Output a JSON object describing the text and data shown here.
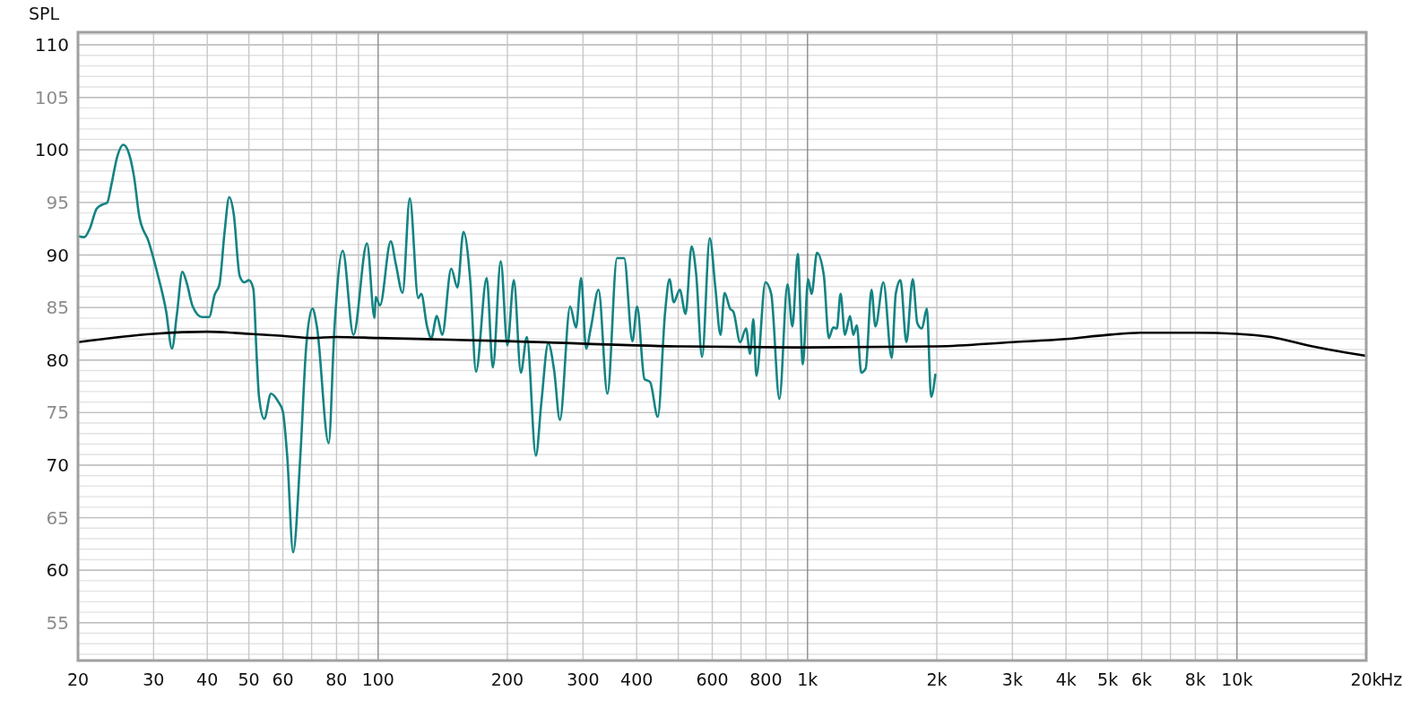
{
  "chart_data": {
    "type": "line",
    "ylabel": "SPL",
    "xlabel": "Hz",
    "log": "x",
    "grid": true,
    "marker": "none",
    "line_style": "solid",
    "xlim": [
      20,
      20000
    ],
    "ylim": [
      51.4,
      111.2
    ],
    "xticks": [
      20,
      30,
      40,
      50,
      60,
      80,
      100,
      200,
      300,
      400,
      600,
      800,
      {
        "value": 1000,
        "label": "1k"
      },
      {
        "value": 2000,
        "label": "2k"
      },
      {
        "value": 3000,
        "label": "3k"
      },
      {
        "value": 4000,
        "label": "4k"
      },
      {
        "value": 5000,
        "label": "5k"
      },
      {
        "value": 6000,
        "label": "6k"
      },
      {
        "value": 8000,
        "label": "8k"
      },
      {
        "value": 10000,
        "label": "10k"
      },
      {
        "value": 20000,
        "label": "20k"
      }
    ],
    "yticks": [
      55,
      60,
      65,
      70,
      75,
      80,
      85,
      90,
      95,
      100,
      105,
      110
    ],
    "series": [
      {
        "color": "#138383",
        "x": [
          20,
          20.7,
          21.3,
          22.1,
          22.8,
          23.4,
          23.9,
          24.7,
          25.5,
          26.1,
          27,
          27.8,
          29.2,
          30.6,
          32.1,
          33.1,
          34,
          35,
          35.8,
          37,
          38.9,
          40.4,
          41.6,
          42.7,
          43.9,
          45,
          46.1,
          47.6,
          48.8,
          50,
          51.2,
          52.2,
          52.8,
          54.3,
          56.3,
          58.6,
          60,
          61.4,
          63.4,
          65.9,
          68,
          70.3,
          72,
          76.7,
          79.1,
          82.7,
          87.6,
          94.2,
          98.1,
          98.7,
          101,
          107,
          110,
          114,
          118.5,
          124,
          126,
          130,
          133,
          137,
          141,
          148,
          153,
          158,
          164,
          169,
          179,
          185,
          193,
          200,
          207,
          215,
          222,
          233,
          240,
          249,
          257,
          265,
          280,
          289,
          297,
          305,
          313,
          326,
          342,
          360,
          374,
          391,
          401,
          417,
          430,
          448,
          466,
          477,
          488,
          504,
          520,
          537,
          550,
          568,
          592,
          610,
          627,
          641,
          660,
          672,
          697,
          719,
          735,
          748,
          760,
          798,
          823,
          860,
          898,
          922,
          949,
          975,
          1003,
          1022,
          1052,
          1091,
          1121,
          1148,
          1170,
          1194,
          1222,
          1256,
          1278,
          1302,
          1334,
          1366,
          1409,
          1439,
          1502,
          1570,
          1605,
          1646,
          1699,
          1758,
          1802,
          1846,
          1896,
          1940,
          1984
        ],
        "values": [
          91.8,
          91.7,
          92.5,
          94.4,
          94.8,
          95,
          96.6,
          99.4,
          100.5,
          100,
          97.5,
          93.6,
          91.3,
          88.3,
          84.6,
          81.1,
          84.4,
          88.4,
          87.4,
          85.1,
          84.1,
          84.1,
          86.2,
          87.2,
          92.2,
          95.5,
          93.9,
          88,
          87.4,
          87.6,
          86.8,
          79.9,
          76.5,
          74.4,
          76.8,
          76,
          75.1,
          70.9,
          61.7,
          70.9,
          81.3,
          84.9,
          83.2,
          72.1,
          83,
          90.4,
          82.4,
          91.1,
          84,
          86,
          85.2,
          91.3,
          89.1,
          86.4,
          95.4,
          85.9,
          86.3,
          83.2,
          82.1,
          84.2,
          82.4,
          88.7,
          86.9,
          92.2,
          87.4,
          78.9,
          87.8,
          79.3,
          89.4,
          81.4,
          87.6,
          78.8,
          82.2,
          70.9,
          76,
          81.6,
          79,
          74.3,
          85.1,
          83.1,
          87.8,
          81.1,
          83.1,
          86.7,
          76.8,
          89.7,
          89.7,
          81.8,
          85.1,
          78.2,
          77.9,
          74.6,
          84.6,
          87.7,
          85.5,
          86.7,
          84.4,
          90.8,
          88.3,
          80.3,
          91.6,
          86.9,
          82.4,
          86.4,
          84.9,
          84.6,
          81.7,
          83,
          80.6,
          83.9,
          78.5,
          87.4,
          86.3,
          76.3,
          87.2,
          83.2,
          90.1,
          79.6,
          87.7,
          86.3,
          90.2,
          88.1,
          82.1,
          83.1,
          83,
          86.3,
          82.4,
          84.2,
          82.4,
          83.3,
          78.8,
          79.2,
          86.7,
          83.2,
          87.4,
          80.2,
          86.3,
          87.6,
          81.7,
          87.7,
          83.5,
          83,
          84.9,
          76.5,
          78.6
        ]
      },
      {
        "color": "#000000",
        "x": [
          20,
          30,
          40,
          50,
          60,
          70,
          80,
          100,
          200,
          500,
          1000,
          2000,
          3000,
          4000,
          5000,
          6000,
          8000,
          10000,
          12000,
          15000,
          18000,
          20000
        ],
        "values": [
          81.7,
          82.5,
          82.7,
          82.5,
          82.3,
          82.1,
          82.2,
          82.1,
          81.8,
          81.3,
          81.2,
          81.3,
          81.7,
          82,
          82.4,
          82.6,
          82.6,
          82.5,
          82.2,
          81.3,
          80.7,
          80.4
        ]
      }
    ]
  }
}
